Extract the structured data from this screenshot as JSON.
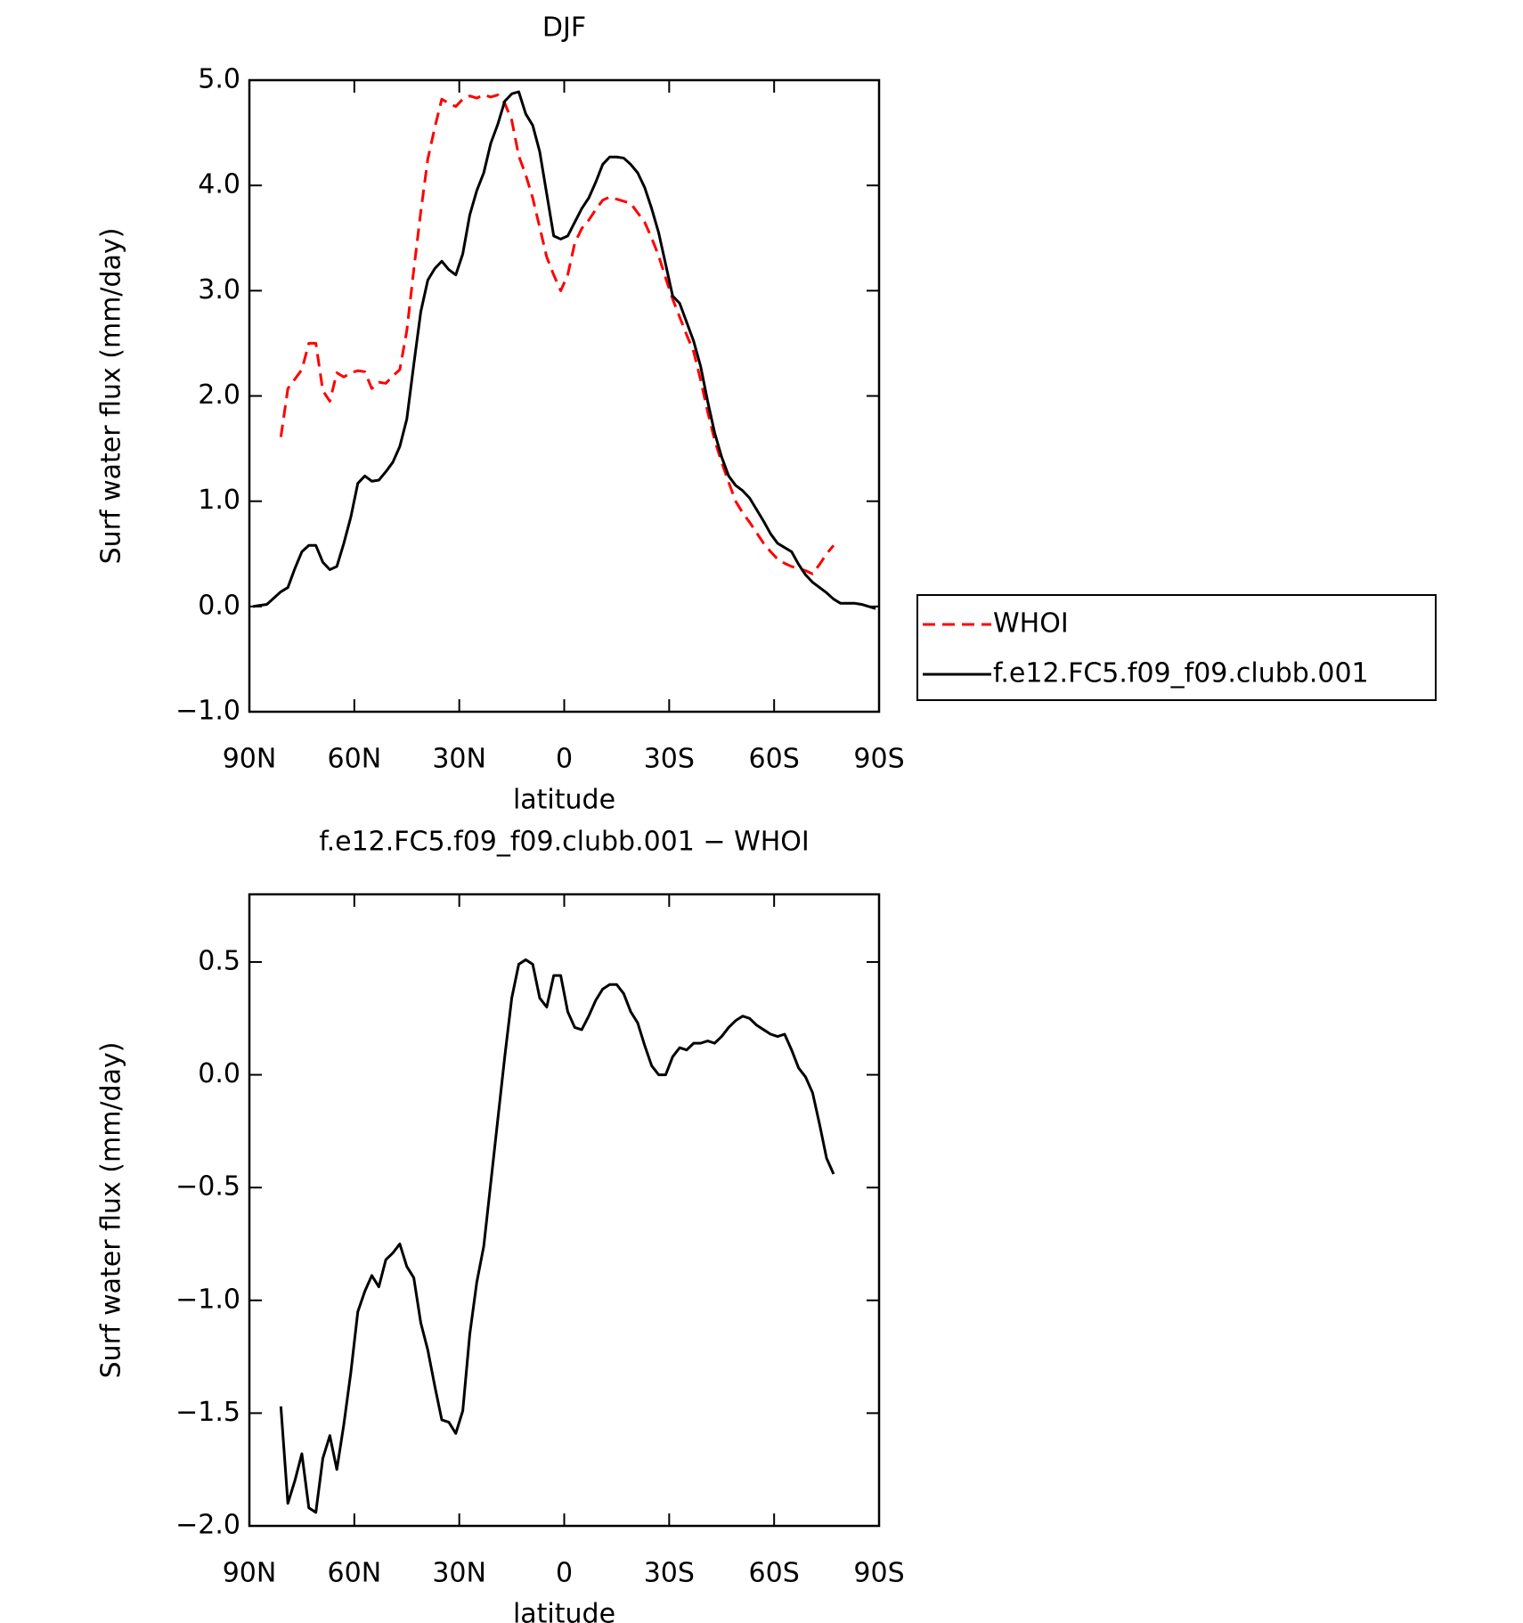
{
  "chart_data": [
    {
      "type": "line",
      "title": "DJF",
      "xlabel": "latitude",
      "ylabel": "Surf water flux (mm/day)",
      "xlim": [
        90,
        -90
      ],
      "xticks": [
        {
          "value": 90,
          "label": "90N"
        },
        {
          "value": 60,
          "label": "60N"
        },
        {
          "value": 30,
          "label": "30N"
        },
        0,
        {
          "value": -30,
          "label": "30S"
        },
        {
          "value": -60,
          "label": "60S"
        },
        {
          "value": -90,
          "label": "90S"
        }
      ],
      "ylim": [
        -1,
        5
      ],
      "yticks": [
        {
          "value": -1,
          "label": "−1.0"
        },
        {
          "value": 0,
          "label": "0.0"
        },
        {
          "value": 1,
          "label": "1.0"
        },
        {
          "value": 2,
          "label": "2.0"
        },
        {
          "value": 3,
          "label": "3.0"
        },
        {
          "value": 4,
          "label": "4.0"
        },
        {
          "value": 5,
          "label": "5.0"
        }
      ],
      "legend": "right",
      "series": [
        {
          "name": "WHOI",
          "color": "#ff0000",
          "dashed": true,
          "x": [
            81,
            79,
            77,
            75,
            73,
            71,
            69,
            67,
            65,
            63,
            61,
            59,
            57,
            55,
            53,
            51,
            49,
            47,
            45,
            43,
            41,
            39,
            37,
            35,
            33,
            31,
            29,
            27,
            25,
            23,
            21,
            19,
            17,
            15,
            13,
            11,
            9,
            7,
            5,
            3,
            1,
            -1,
            -3,
            -5,
            -7,
            -9,
            -11,
            -13,
            -15,
            -17,
            -19,
            -21,
            -23,
            -25,
            -27,
            -29,
            -31,
            -33,
            -35,
            -37,
            -39,
            -41,
            -43,
            -45,
            -47,
            -49,
            -51,
            -53,
            -55,
            -57,
            -59,
            -61,
            -63,
            -65,
            -67,
            -69,
            -71,
            -73,
            -75,
            -77
          ],
          "values": [
            1.61,
            2.07,
            2.16,
            2.25,
            2.5,
            2.5,
            2.05,
            1.95,
            2.22,
            2.18,
            2.22,
            2.24,
            2.23,
            2.07,
            2.13,
            2.12,
            2.19,
            2.25,
            2.62,
            3.2,
            3.75,
            4.25,
            4.55,
            4.82,
            4.78,
            4.75,
            4.82,
            4.85,
            4.83,
            4.86,
            4.84,
            4.86,
            4.78,
            4.62,
            4.28,
            4.1,
            3.88,
            3.6,
            3.32,
            3.15,
            3.0,
            3.15,
            3.45,
            3.59,
            3.67,
            3.77,
            3.86,
            3.89,
            3.87,
            3.85,
            3.83,
            3.74,
            3.65,
            3.5,
            3.33,
            3.12,
            2.92,
            2.75,
            2.58,
            2.42,
            2.15,
            1.85,
            1.58,
            1.37,
            1.18,
            1.0,
            0.89,
            0.8,
            0.7,
            0.6,
            0.52,
            0.45,
            0.41,
            0.38,
            0.36,
            0.34,
            0.31,
            0.4,
            0.5,
            0.58
          ]
        },
        {
          "name": "f.e12.FC5.f09_f09.clubb.001",
          "color": "#000000",
          "dashed": false,
          "x": [
            89,
            87,
            85,
            83,
            81,
            79,
            77,
            75,
            73,
            71,
            69,
            67,
            65,
            63,
            61,
            59,
            57,
            55,
            53,
            51,
            49,
            47,
            45,
            43,
            41,
            39,
            37,
            35,
            33,
            31,
            29,
            27,
            25,
            23,
            21,
            19,
            17,
            15,
            13,
            11,
            9,
            7,
            5,
            3,
            1,
            -1,
            -3,
            -5,
            -7,
            -9,
            -11,
            -13,
            -15,
            -17,
            -19,
            -21,
            -23,
            -25,
            -27,
            -29,
            -31,
            -33,
            -35,
            -37,
            -39,
            -41,
            -43,
            -45,
            -47,
            -49,
            -51,
            -53,
            -55,
            -57,
            -59,
            -61,
            -63,
            -65,
            -67,
            -69,
            -71,
            -73,
            -75,
            -77,
            -79,
            -81,
            -83,
            -85,
            -87,
            -89
          ],
          "values": [
            0.0,
            0.01,
            0.02,
            0.08,
            0.14,
            0.18,
            0.36,
            0.52,
            0.58,
            0.58,
            0.42,
            0.35,
            0.38,
            0.6,
            0.85,
            1.17,
            1.24,
            1.19,
            1.2,
            1.28,
            1.37,
            1.52,
            1.78,
            2.3,
            2.8,
            3.1,
            3.21,
            3.28,
            3.2,
            3.15,
            3.35,
            3.72,
            3.95,
            4.12,
            4.4,
            4.58,
            4.8,
            4.87,
            4.89,
            4.68,
            4.57,
            4.32,
            3.92,
            3.52,
            3.49,
            3.52,
            3.65,
            3.78,
            3.88,
            4.03,
            4.2,
            4.27,
            4.27,
            4.26,
            4.2,
            4.12,
            3.98,
            3.78,
            3.55,
            3.25,
            2.95,
            2.88,
            2.7,
            2.52,
            2.28,
            1.95,
            1.65,
            1.42,
            1.24,
            1.15,
            1.1,
            1.03,
            0.92,
            0.81,
            0.69,
            0.6,
            0.56,
            0.52,
            0.4,
            0.3,
            0.23,
            0.18,
            0.13,
            0.07,
            0.03,
            0.03,
            0.03,
            0.02,
            0.0,
            -0.02
          ]
        }
      ]
    },
    {
      "type": "line",
      "title": "f.e12.FC5.f09_f09.clubb.001 − WHOI",
      "xlabel": "latitude",
      "ylabel": "Surf water flux (mm/day)",
      "xlim": [
        90,
        -90
      ],
      "xticks": [
        {
          "value": 90,
          "label": "90N"
        },
        {
          "value": 60,
          "label": "60N"
        },
        {
          "value": 30,
          "label": "30N"
        },
        0,
        {
          "value": -30,
          "label": "30S"
        },
        {
          "value": -60,
          "label": "60S"
        },
        {
          "value": -90,
          "label": "90S"
        }
      ],
      "ylim": [
        -2,
        0.8
      ],
      "yticks": [
        {
          "value": -2,
          "label": "−2.0"
        },
        {
          "value": -1.5,
          "label": "−1.5"
        },
        {
          "value": -1,
          "label": "−1.0"
        },
        {
          "value": -0.5,
          "label": "−0.5"
        },
        {
          "value": 0,
          "label": "0.0"
        },
        0.5
      ],
      "color": "#000000",
      "x": [
        81,
        79,
        77,
        75,
        73,
        71,
        69,
        67,
        65,
        63,
        61,
        59,
        57,
        55,
        53,
        51,
        49,
        47,
        45,
        43,
        41,
        39,
        37,
        35,
        33,
        31,
        29,
        27,
        25,
        23,
        21,
        19,
        17,
        15,
        13,
        11,
        9,
        7,
        5,
        3,
        1,
        -1,
        -3,
        -5,
        -7,
        -9,
        -11,
        -13,
        -15,
        -17,
        -19,
        -21,
        -23,
        -25,
        -27,
        -29,
        -31,
        -33,
        -35,
        -37,
        -39,
        -41,
        -43,
        -45,
        -47,
        -49,
        -51,
        -53,
        -55,
        -57,
        -59,
        -61,
        -63,
        -65,
        -67,
        -69,
        -71,
        -73,
        -75,
        -77
      ],
      "values": [
        -1.47,
        -1.9,
        -1.8,
        -1.68,
        -1.92,
        -1.94,
        -1.7,
        -1.6,
        -1.75,
        -1.55,
        -1.32,
        -1.05,
        -0.96,
        -0.89,
        -0.94,
        -0.82,
        -0.79,
        -0.75,
        -0.85,
        -0.9,
        -1.1,
        -1.22,
        -1.38,
        -1.53,
        -1.54,
        -1.59,
        -1.49,
        -1.15,
        -0.92,
        -0.76,
        -0.48,
        -0.2,
        0.08,
        0.34,
        0.49,
        0.51,
        0.49,
        0.34,
        0.3,
        0.44,
        0.44,
        0.28,
        0.21,
        0.2,
        0.26,
        0.33,
        0.38,
        0.4,
        0.4,
        0.36,
        0.28,
        0.23,
        0.13,
        0.04,
        0.0,
        0.0,
        0.08,
        0.12,
        0.11,
        0.14,
        0.14,
        0.15,
        0.14,
        0.17,
        0.21,
        0.24,
        0.26,
        0.25,
        0.22,
        0.2,
        0.18,
        0.17,
        0.18,
        0.11,
        0.03,
        -0.01,
        -0.08,
        -0.22,
        -0.37,
        -0.44
      ]
    }
  ]
}
